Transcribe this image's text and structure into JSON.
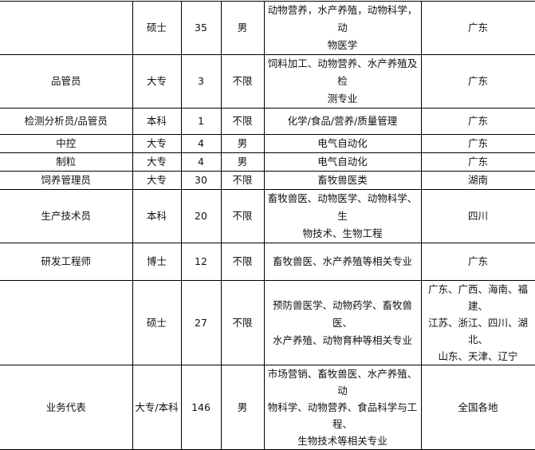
{
  "rows": [
    {
      "position": "",
      "education": "硕士",
      "count": "35",
      "gender": "男",
      "major": "动物营养，水产养殖，动物科学，动\n物医学",
      "location": "广东"
    },
    {
      "position": "品管员",
      "education": "大专",
      "count": "3",
      "gender": "不限",
      "major": "饲料加工、动物营养、水产养殖及检\n测专业",
      "location": "广东"
    },
    {
      "position": "检测分析员/品管员",
      "education": "本科",
      "count": "1",
      "gender": "不限",
      "major": "化学/食品/营养/质量管理",
      "location": "广东"
    },
    {
      "position": "中控",
      "education": "大专",
      "count": "4",
      "gender": "男",
      "major": "电气自动化",
      "location": "广东"
    },
    {
      "position": "制粒",
      "education": "大专",
      "count": "4",
      "gender": "男",
      "major": "电气自动化",
      "location": "广东"
    },
    {
      "position": "饲养管理员",
      "education": "大专",
      "count": "30",
      "gender": "不限",
      "major": "畜牧兽医类",
      "location": "湖南"
    },
    {
      "position": "生产技术员",
      "education": "本科",
      "count": "20",
      "gender": "不限",
      "major": "畜牧兽医、动物医学、动物科学、生\n物技术、生物工程",
      "location": "四川"
    },
    {
      "position": "研发工程师",
      "education": "博士",
      "count": "12",
      "gender": "不限",
      "major": "畜牧兽医、水产养殖等相关专业",
      "location": "广东"
    },
    {
      "position": "",
      "education": "硕士",
      "count": "27",
      "gender": "不限",
      "major": "预防兽医学、动物药学、畜牧兽医、\n水产养殖、动物育种等相关专业",
      "location": "广东、广西、海南、福建、\n江苏、浙江、四川、湖北、\n山东、天津、辽宁"
    },
    {
      "position": "业务代表",
      "education": "大专/本科",
      "count": "146",
      "gender": "男",
      "major": "市场营销、畜牧兽医、水产养殖、动\n物科学、动物营养、食品科学与工程、\n生物技术等相关专业",
      "location": "全国各地"
    }
  ]
}
